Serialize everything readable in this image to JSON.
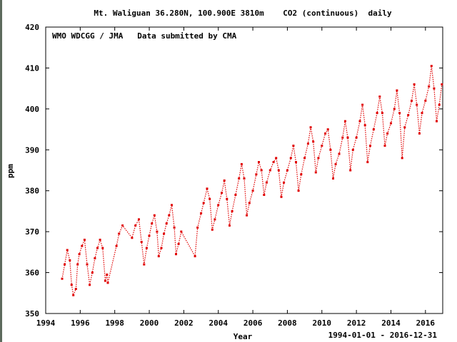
{
  "chart_data": {
    "type": "scatter",
    "title": "Mt. Waliguan 36.280N, 100.900E 3810m    CO2 (continuous)  daily",
    "annotation": "WMO WDCGG / JMA   Data submitted by CMA",
    "xlabel": "Year",
    "ylabel": "ppm",
    "date_range": "1994-01-01 - 2016-12-31",
    "xlim": [
      1994,
      2017
    ],
    "ylim": [
      350,
      420
    ],
    "x_ticks": [
      1994,
      1996,
      1998,
      2000,
      2002,
      2004,
      2006,
      2008,
      2010,
      2012,
      2014,
      2016
    ],
    "x_tick_labels": [
      "1994",
      "1996",
      "1998",
      "2000",
      "2002",
      "2004",
      "2006",
      "2008",
      "2010",
      "2012",
      "2014",
      "2016"
    ],
    "y_ticks": [
      350,
      360,
      370,
      380,
      390,
      400,
      410,
      420
    ],
    "y_tick_labels": [
      "350",
      "360",
      "370",
      "380",
      "390",
      "400",
      "410",
      "420"
    ],
    "grid": false,
    "series": [
      {
        "name": "CO2 daily",
        "color": "#e00000",
        "x": [
          1994.95,
          1995.1,
          1995.25,
          1995.4,
          1995.5,
          1995.6,
          1995.75,
          1995.85,
          1995.95,
          1996.1,
          1996.25,
          1996.4,
          1996.55,
          1996.7,
          1996.85,
          1997.0,
          1997.15,
          1997.3,
          1997.45,
          1997.55,
          1997.6,
          1998.1,
          1998.25,
          1998.45,
          1999.0,
          1999.2,
          1999.4,
          1999.55,
          1999.7,
          1999.85,
          2000.0,
          2000.15,
          2000.3,
          2000.45,
          2000.55,
          2000.7,
          2000.85,
          2001.0,
          2001.15,
          2001.3,
          2001.45,
          2001.55,
          2001.7,
          2001.85,
          2002.65,
          2002.8,
          2003.0,
          2003.15,
          2003.35,
          2003.5,
          2003.65,
          2003.8,
          2004.0,
          2004.2,
          2004.35,
          2004.5,
          2004.65,
          2004.8,
          2005.0,
          2005.2,
          2005.35,
          2005.5,
          2005.65,
          2005.8,
          2006.0,
          2006.2,
          2006.35,
          2006.5,
          2006.65,
          2006.8,
          2007.0,
          2007.2,
          2007.35,
          2007.5,
          2007.65,
          2007.8,
          2008.0,
          2008.2,
          2008.35,
          2008.5,
          2008.65,
          2008.8,
          2009.0,
          2009.2,
          2009.35,
          2009.5,
          2009.65,
          2009.8,
          2010.0,
          2010.2,
          2010.35,
          2010.5,
          2010.65,
          2010.8,
          2011.0,
          2011.2,
          2011.35,
          2011.5,
          2011.65,
          2011.8,
          2012.0,
          2012.2,
          2012.35,
          2012.5,
          2012.65,
          2012.8,
          2013.0,
          2013.2,
          2013.35,
          2013.5,
          2013.65,
          2013.8,
          2014.0,
          2014.2,
          2014.35,
          2014.5,
          2014.65,
          2014.8,
          2015.0,
          2015.2,
          2015.35,
          2015.5,
          2015.65,
          2015.8,
          2016.0,
          2016.2,
          2016.35,
          2016.5,
          2016.65,
          2016.8,
          2016.95
        ],
        "y": [
          358.5,
          362.0,
          365.5,
          363.0,
          357.0,
          354.5,
          356.0,
          362.0,
          364.5,
          366.5,
          368.0,
          362.0,
          357.0,
          360.0,
          363.5,
          366.0,
          368.0,
          366.0,
          358.0,
          359.5,
          357.5,
          366.5,
          369.5,
          371.5,
          368.5,
          371.5,
          373.0,
          367.5,
          362.0,
          366.0,
          369.0,
          372.0,
          374.0,
          370.0,
          364.0,
          366.0,
          369.5,
          372.0,
          374.0,
          376.5,
          371.0,
          364.5,
          367.0,
          370.0,
          364.0,
          371.0,
          374.5,
          377.0,
          380.5,
          378.0,
          370.5,
          373.0,
          376.5,
          379.5,
          382.5,
          378.0,
          371.5,
          375.0,
          379.0,
          383.0,
          386.5,
          383.0,
          374.0,
          377.0,
          380.0,
          384.0,
          387.0,
          385.0,
          379.0,
          382.0,
          385.0,
          387.0,
          388.0,
          385.0,
          378.5,
          382.0,
          385.0,
          388.0,
          391.0,
          387.0,
          380.0,
          384.0,
          388.0,
          391.5,
          395.5,
          392.0,
          384.5,
          388.0,
          391.0,
          394.0,
          395.0,
          390.0,
          383.0,
          386.5,
          389.0,
          393.0,
          397.0,
          393.0,
          385.0,
          390.0,
          393.0,
          397.0,
          401.0,
          396.0,
          387.0,
          391.0,
          395.0,
          399.0,
          403.0,
          399.0,
          391.0,
          394.0,
          396.5,
          400.0,
          404.5,
          399.0,
          388.0,
          395.5,
          398.5,
          402.0,
          406.0,
          401.0,
          394.0,
          399.0,
          402.0,
          405.5,
          410.5,
          405.0,
          397.0,
          401.0,
          406.0
        ]
      }
    ]
  }
}
